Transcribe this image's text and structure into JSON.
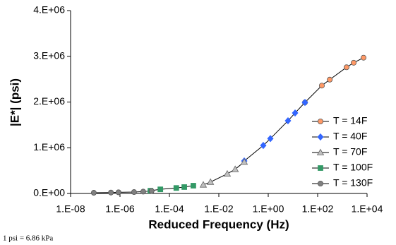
{
  "chart_data": {
    "type": "scatter",
    "x_label": "Reduced Frequency (Hz)",
    "y_label": "|E*| (psi)",
    "note": "1 psi = 6.86 kPa",
    "x_scale": "log",
    "xlim": [
      1e-08,
      10000.0
    ],
    "xticks": [
      {
        "value": 1e-08,
        "label": "1.E-08"
      },
      {
        "value": 1e-06,
        "label": "1.E-06"
      },
      {
        "value": 0.0001,
        "label": "1.E-04"
      },
      {
        "value": 0.01,
        "label": "1.E-02"
      },
      {
        "value": 1,
        "label": "1.E+00"
      },
      {
        "value": 100,
        "label": "1.E+02"
      },
      {
        "value": 10000,
        "label": "1.E+04"
      }
    ],
    "ylim": [
      0,
      4000000
    ],
    "yticks": [
      {
        "value": 0,
        "label": "0.E+00"
      },
      {
        "value": 1000000,
        "label": "1.E+06"
      },
      {
        "value": 2000000,
        "label": "2.E+06"
      },
      {
        "value": 3000000,
        "label": "3.E+06"
      },
      {
        "value": 4000000,
        "label": "4.E+06"
      }
    ],
    "grid": false,
    "legend": "right",
    "series": [
      {
        "name": "T = 14F",
        "color": "#ff9966",
        "marker": "circle",
        "x": [
          30.6,
          148,
          309,
          1480,
          2880,
          7200
        ],
        "values": [
          1990000,
          2360000,
          2490000,
          2760000,
          2860000,
          2970000
        ]
      },
      {
        "name": "T = 40F",
        "color": "#3366ff",
        "marker": "diamond",
        "x": [
          0.107,
          0.63,
          1.22,
          6.3,
          12.2,
          30.6
        ],
        "values": [
          710000,
          1050000,
          1200000,
          1590000,
          1760000,
          1990000
        ]
      },
      {
        "name": "T = 70F",
        "color": "#c0c0c0",
        "marker": "triangle",
        "x": [
          0.00235,
          0.0046,
          0.022,
          0.046,
          0.107
        ],
        "values": [
          190000,
          250000,
          430000,
          530000,
          690000
        ]
      },
      {
        "name": "T = 100F",
        "color": "#339966",
        "marker": "square",
        "x": [
          1.7e-05,
          4.3e-05,
          0.00019,
          0.0004,
          0.00093
        ],
        "values": [
          60000,
          90000,
          120000,
          140000,
          170000
        ]
      },
      {
        "name": "T = 130F",
        "color": "#808080",
        "marker": "circle",
        "x": [
          8.7e-08,
          4.3e-07,
          8.7e-07,
          3.7e-06,
          8.7e-06,
          1.9e-05
        ],
        "values": [
          15000,
          20000,
          25000,
          30000,
          40000,
          55000
        ]
      }
    ]
  }
}
